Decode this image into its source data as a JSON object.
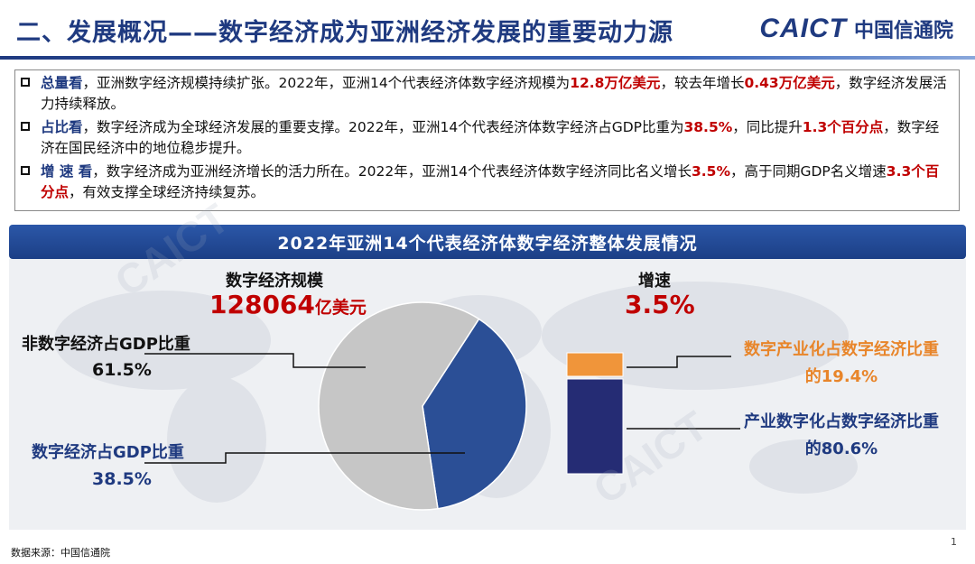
{
  "header": {
    "title": "二、发展概况——数字经济成为亚洲经济发展的重要动力源",
    "logo_en": "CAICT",
    "logo_cn": "中国信通院"
  },
  "summary": [
    {
      "parts": [
        {
          "text": "总量看",
          "style": "kw"
        },
        {
          "text": "，亚洲数字经济规模持续扩张。2022年，亚洲14个代表经济体数字经济规模为",
          "style": ""
        },
        {
          "text": "12.8万亿美元",
          "style": "red"
        },
        {
          "text": "，较去年增长",
          "style": ""
        },
        {
          "text": "0.43万亿美元",
          "style": "red"
        },
        {
          "text": "，数字经济发展活力持续释放。",
          "style": ""
        }
      ]
    },
    {
      "parts": [
        {
          "text": "占比看",
          "style": "kw"
        },
        {
          "text": "，数字经济成为全球经济发展的重要支撑。2022年，亚洲14个代表经济体数字经济占GDP比重为",
          "style": ""
        },
        {
          "text": "38.5%",
          "style": "red"
        },
        {
          "text": "，同比提升",
          "style": ""
        },
        {
          "text": "1.3个百分点",
          "style": "red"
        },
        {
          "text": "，数字经济在国民经济中的地位稳步提升。",
          "style": ""
        }
      ]
    },
    {
      "parts": [
        {
          "text": "增 速 看",
          "style": "kw"
        },
        {
          "text": "，数字经济成为亚洲经济增长的活力所在。2022年，亚洲14个代表经济体数字经济同比名义增长",
          "style": ""
        },
        {
          "text": "3.5%",
          "style": "red"
        },
        {
          "text": "，高于同期GDP名义增速",
          "style": ""
        },
        {
          "text": "3.3个百分点",
          "style": "red"
        },
        {
          "text": "，有效支撑全球经济持续复苏。",
          "style": ""
        }
      ]
    }
  ],
  "banner": {
    "title": "2022年亚洲14个代表经济体数字经济整体发展情况"
  },
  "infographic": {
    "scale_label": "数字经济规模",
    "scale_value": "128064",
    "scale_unit": "亿美元",
    "growth_label": "增速",
    "growth_value": "3.5%"
  },
  "chart_data": [
    {
      "type": "pie",
      "slices": [
        {
          "name": "非数字经济占GDP比重",
          "value": 61.5,
          "label": "61.5%",
          "color": "#c6c6c6"
        },
        {
          "name": "数字经济占GDP比重",
          "value": 38.5,
          "label": "38.5%",
          "color": "#2b4f96"
        }
      ]
    },
    {
      "type": "bar",
      "stacked": true,
      "segments": [
        {
          "name": "数字产业化占数字经济比重的",
          "value": 19.4,
          "label": "19.4%",
          "color": "#f0953a"
        },
        {
          "name": "产业数字化占数字经济比重的",
          "value": 80.6,
          "label": "80.6%",
          "color": "#252c74"
        }
      ]
    }
  ],
  "footer": {
    "source": "数据来源：中国信通院",
    "page": "1"
  },
  "colors": {
    "navy": "#1f3a80",
    "red": "#c00000",
    "orange": "#e8852a"
  }
}
